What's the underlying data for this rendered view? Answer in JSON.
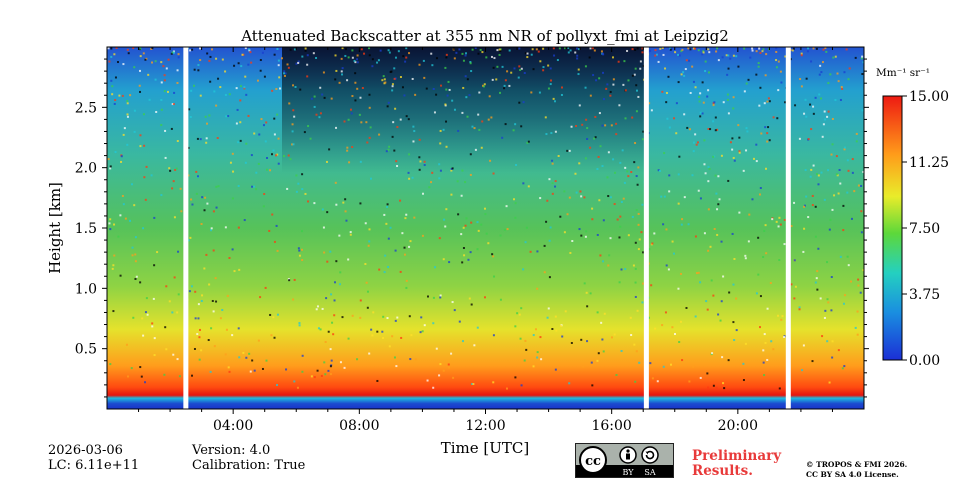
{
  "chart_data": {
    "type": "heatmap",
    "title": "Attenuated Backscatter at 355 nm NR of pollyxt_fmi at Leipzig2",
    "xlabel": "Time [UTC]",
    "ylabel": "Height [km]",
    "xlim": [
      0,
      24
    ],
    "ylim": [
      0,
      3.0
    ],
    "x_ticks": [
      4,
      8,
      12,
      16,
      20
    ],
    "x_tick_labels": [
      "04:00",
      "08:00",
      "12:00",
      "16:00",
      "20:00"
    ],
    "y_ticks": [
      0.5,
      1.0,
      1.5,
      2.0,
      2.5
    ],
    "y_tick_labels": [
      "0.5",
      "1.0",
      "1.5",
      "2.0",
      "2.5"
    ],
    "data_gaps_hours": [
      2.5,
      17.1,
      21.6
    ],
    "colorbar": {
      "label": "Mm⁻¹ sr⁻¹",
      "min": 0.0,
      "max": 15.0,
      "ticks": [
        0.0,
        3.75,
        7.5,
        11.25,
        15.0
      ],
      "tick_labels": [
        "0.00",
        "3.75",
        "7.50",
        "11.25",
        "15.00"
      ]
    }
  },
  "footer": {
    "date": "2026-03-06",
    "lc": "LC: 6.11e+11",
    "version": "Version: 4.0",
    "calibration": "Calibration: True",
    "license_badge": {
      "cc": "cc",
      "by": "BY",
      "sa": "SA"
    },
    "preliminary_line1": "Preliminary",
    "preliminary_line2": "Results.",
    "copyright_line1": "© TROPOS & FMI 2026.",
    "copyright_line2": "CC BY SA 4.0 License."
  },
  "colors": {
    "low": "#1a3dc8",
    "mid": "#6cd33a",
    "high": "#ff2a00",
    "gap": "#ffffff"
  }
}
